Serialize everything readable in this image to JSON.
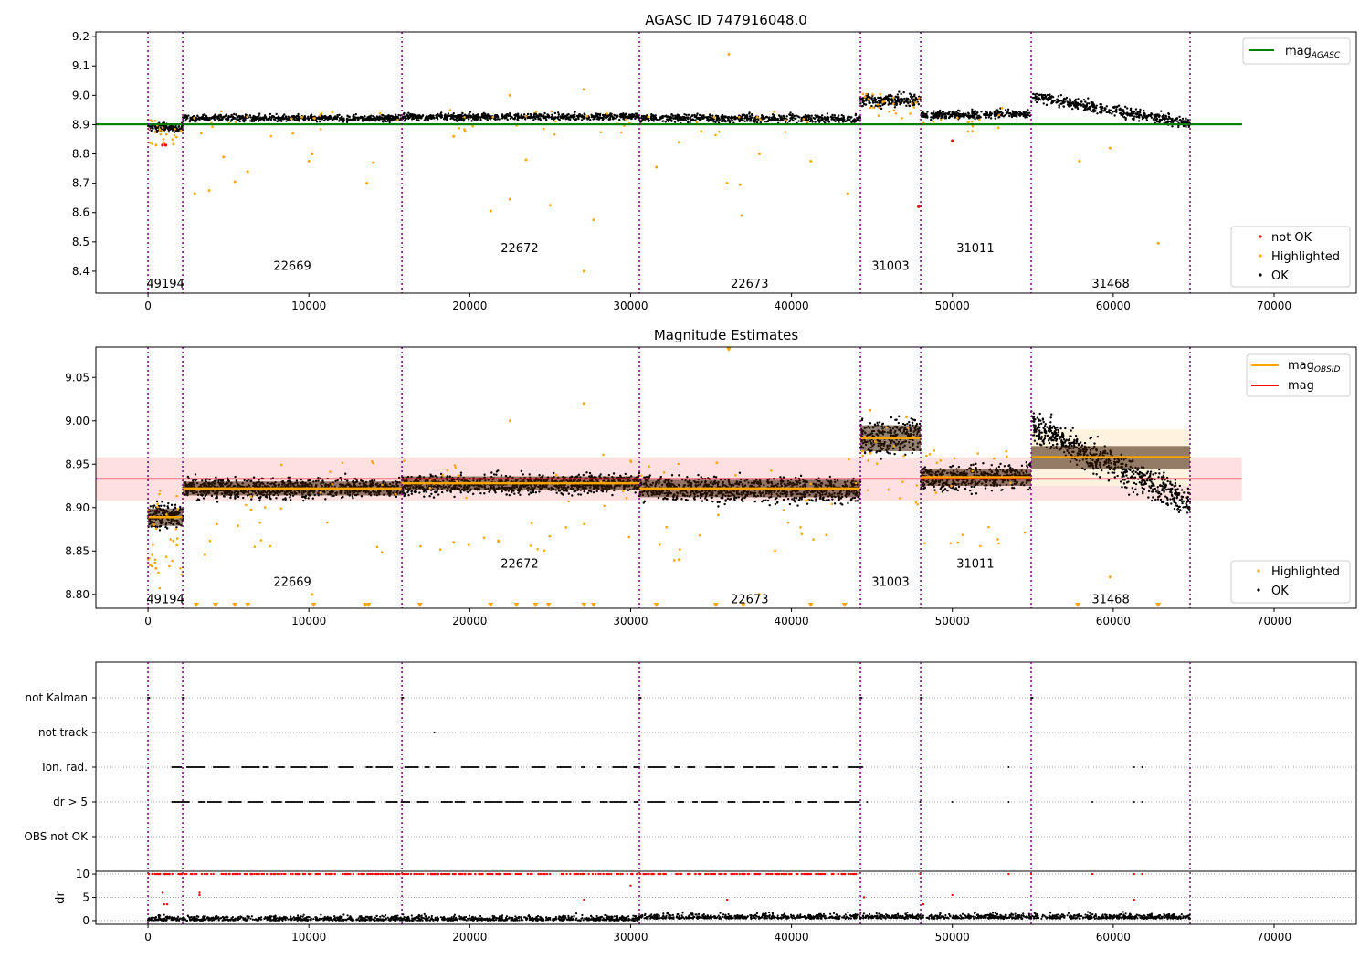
{
  "chart_data": [
    {
      "type": "scatter",
      "title": "AGASC ID 747916048.0",
      "xlim": [
        -3240,
        75110
      ],
      "ylim": [
        8.325,
        9.216
      ],
      "xticks": [
        0,
        10000,
        20000,
        30000,
        40000,
        50000,
        60000,
        70000
      ],
      "yticks": [
        8.4,
        8.5,
        8.6,
        8.7,
        8.8,
        8.9,
        9.0,
        9.1,
        9.2
      ],
      "obsid_boundaries": [
        0,
        2157,
        15785,
        30545,
        44284,
        48031,
        54900,
        64777
      ],
      "obsid_labels": [
        {
          "text": "49194",
          "x": 1080,
          "y": 8.36
        },
        {
          "text": "22669",
          "x": 8970,
          "y": 8.42
        },
        {
          "text": "22672",
          "x": 23100,
          "y": 8.48
        },
        {
          "text": "22673",
          "x": 37400,
          "y": 8.36
        },
        {
          "text": "31003",
          "x": 46150,
          "y": 8.42
        },
        {
          "text": "31011",
          "x": 51430,
          "y": 8.48
        },
        {
          "text": "31468",
          "x": 59840,
          "y": 8.36
        }
      ],
      "segments": [
        {
          "x0": 0,
          "x1": 2157,
          "m0": 8.89,
          "m1": 8.89,
          "sd": 0.01
        },
        {
          "x0": 2157,
          "x1": 15785,
          "m0": 8.922,
          "m1": 8.922,
          "sd": 0.008
        },
        {
          "x0": 15785,
          "x1": 30545,
          "m0": 8.926,
          "m1": 8.928,
          "sd": 0.008
        },
        {
          "x0": 30545,
          "x1": 44284,
          "m0": 8.922,
          "m1": 8.92,
          "sd": 0.01
        },
        {
          "x0": 44284,
          "x1": 48031,
          "m0": 8.98,
          "m1": 8.985,
          "sd": 0.015
        },
        {
          "x0": 48031,
          "x1": 54900,
          "m0": 8.932,
          "m1": 8.937,
          "sd": 0.01
        },
        {
          "x0": 54900,
          "x1": 64777,
          "m0": 8.995,
          "m1": 8.905,
          "sd": 0.013
        }
      ],
      "mag_agasc": 8.901,
      "mag_agasc_range": [
        -3240,
        68000
      ],
      "highlighted": [
        [
          500,
          8.83
        ],
        [
          2900,
          8.665
        ],
        [
          3800,
          8.675
        ],
        [
          5400,
          8.705
        ],
        [
          6200,
          8.74
        ],
        [
          10000,
          8.775
        ],
        [
          13600,
          8.7
        ],
        [
          21300,
          8.605
        ],
        [
          22500,
          8.645
        ],
        [
          25000,
          8.625
        ],
        [
          27100,
          8.4
        ],
        [
          27700,
          8.575
        ],
        [
          36000,
          8.7
        ],
        [
          36800,
          8.695
        ],
        [
          36900,
          8.59
        ],
        [
          36100,
          9.14
        ],
        [
          27100,
          9.02
        ],
        [
          31600,
          8.755
        ],
        [
          41200,
          8.775
        ],
        [
          43500,
          8.665
        ],
        [
          62800,
          8.495
        ],
        [
          57900,
          8.775
        ],
        [
          59800,
          8.82
        ],
        [
          4700,
          8.79
        ],
        [
          10200,
          8.8
        ],
        [
          14000,
          8.77
        ],
        [
          19000,
          8.86
        ],
        [
          23500,
          8.78
        ],
        [
          33000,
          8.84
        ],
        [
          38000,
          8.8
        ],
        [
          22500,
          9.0
        ]
      ],
      "not_ok": [
        [
          900,
          8.83
        ],
        [
          1100,
          8.83
        ],
        [
          47900,
          8.62
        ],
        [
          50000,
          8.845
        ]
      ],
      "legend_line": {
        "label": "mag",
        "sub": "AGASC"
      },
      "legend_points": [
        "not OK",
        "Highlighted",
        "OK"
      ]
    },
    {
      "type": "scatter",
      "title": "Magnitude Estimates",
      "xlim": [
        -3240,
        75110
      ],
      "ylim": [
        8.784,
        9.085
      ],
      "yticks": [
        8.8,
        8.85,
        8.9,
        8.95,
        9.0,
        9.05
      ],
      "ytick_labels": [
        "8.80",
        "8.85",
        "8.90",
        "8.95",
        "9.00",
        "9.05"
      ],
      "obsid_labels": [
        {
          "text": "49194",
          "x": 1080,
          "y": 8.795
        },
        {
          "text": "22669",
          "x": 8970,
          "y": 8.815
        },
        {
          "text": "22672",
          "x": 23100,
          "y": 8.836
        },
        {
          "text": "22673",
          "x": 37400,
          "y": 8.795
        },
        {
          "text": "31003",
          "x": 46150,
          "y": 8.815
        },
        {
          "text": "31011",
          "x": 51430,
          "y": 8.836
        },
        {
          "text": "31468",
          "x": 59840,
          "y": 8.795
        }
      ],
      "mag_obsid": [
        8.889,
        8.922,
        8.928,
        8.922,
        8.98,
        8.935,
        8.958
      ],
      "mag": 8.933,
      "mag_band": [
        8.908,
        8.958
      ],
      "mag_obsid_band_last": [
        8.925,
        8.99
      ],
      "clipped_highlighted_x": [
        3000,
        4200,
        5400,
        6200,
        10300,
        13500,
        13700,
        16900,
        21300,
        22900,
        24100,
        24900,
        27100,
        27700,
        31600,
        35300,
        37000,
        41200,
        43300,
        57800,
        62800
      ],
      "legend_lines": [
        {
          "label": "mag",
          "sub": "OBSID"
        },
        {
          "label": "mag",
          "sub": ""
        }
      ],
      "legend_points": [
        "Highlighted",
        "OK"
      ]
    },
    {
      "type": "scatter",
      "title": "",
      "categories": [
        "not Kalman",
        "not track",
        "Ion. rad.",
        "dr > 5",
        "OBS not OK"
      ],
      "not_kalman_x": [
        0,
        2157,
        15785,
        30545,
        44284,
        48031,
        54900
      ],
      "not_track_x": [
        17800
      ],
      "flag_range": [
        1500,
        44100
      ],
      "ion_rad_extra_x": [
        53500,
        61300,
        61800
      ],
      "dr5_extra_x": [
        44700,
        48000,
        50000,
        53500,
        58700,
        61300,
        61800
      ],
      "dr": {
        "ylabel": "dr",
        "ylim": [
          -0.8,
          10.6
        ],
        "yticks": [
          0,
          5,
          10
        ]
      }
    }
  ]
}
